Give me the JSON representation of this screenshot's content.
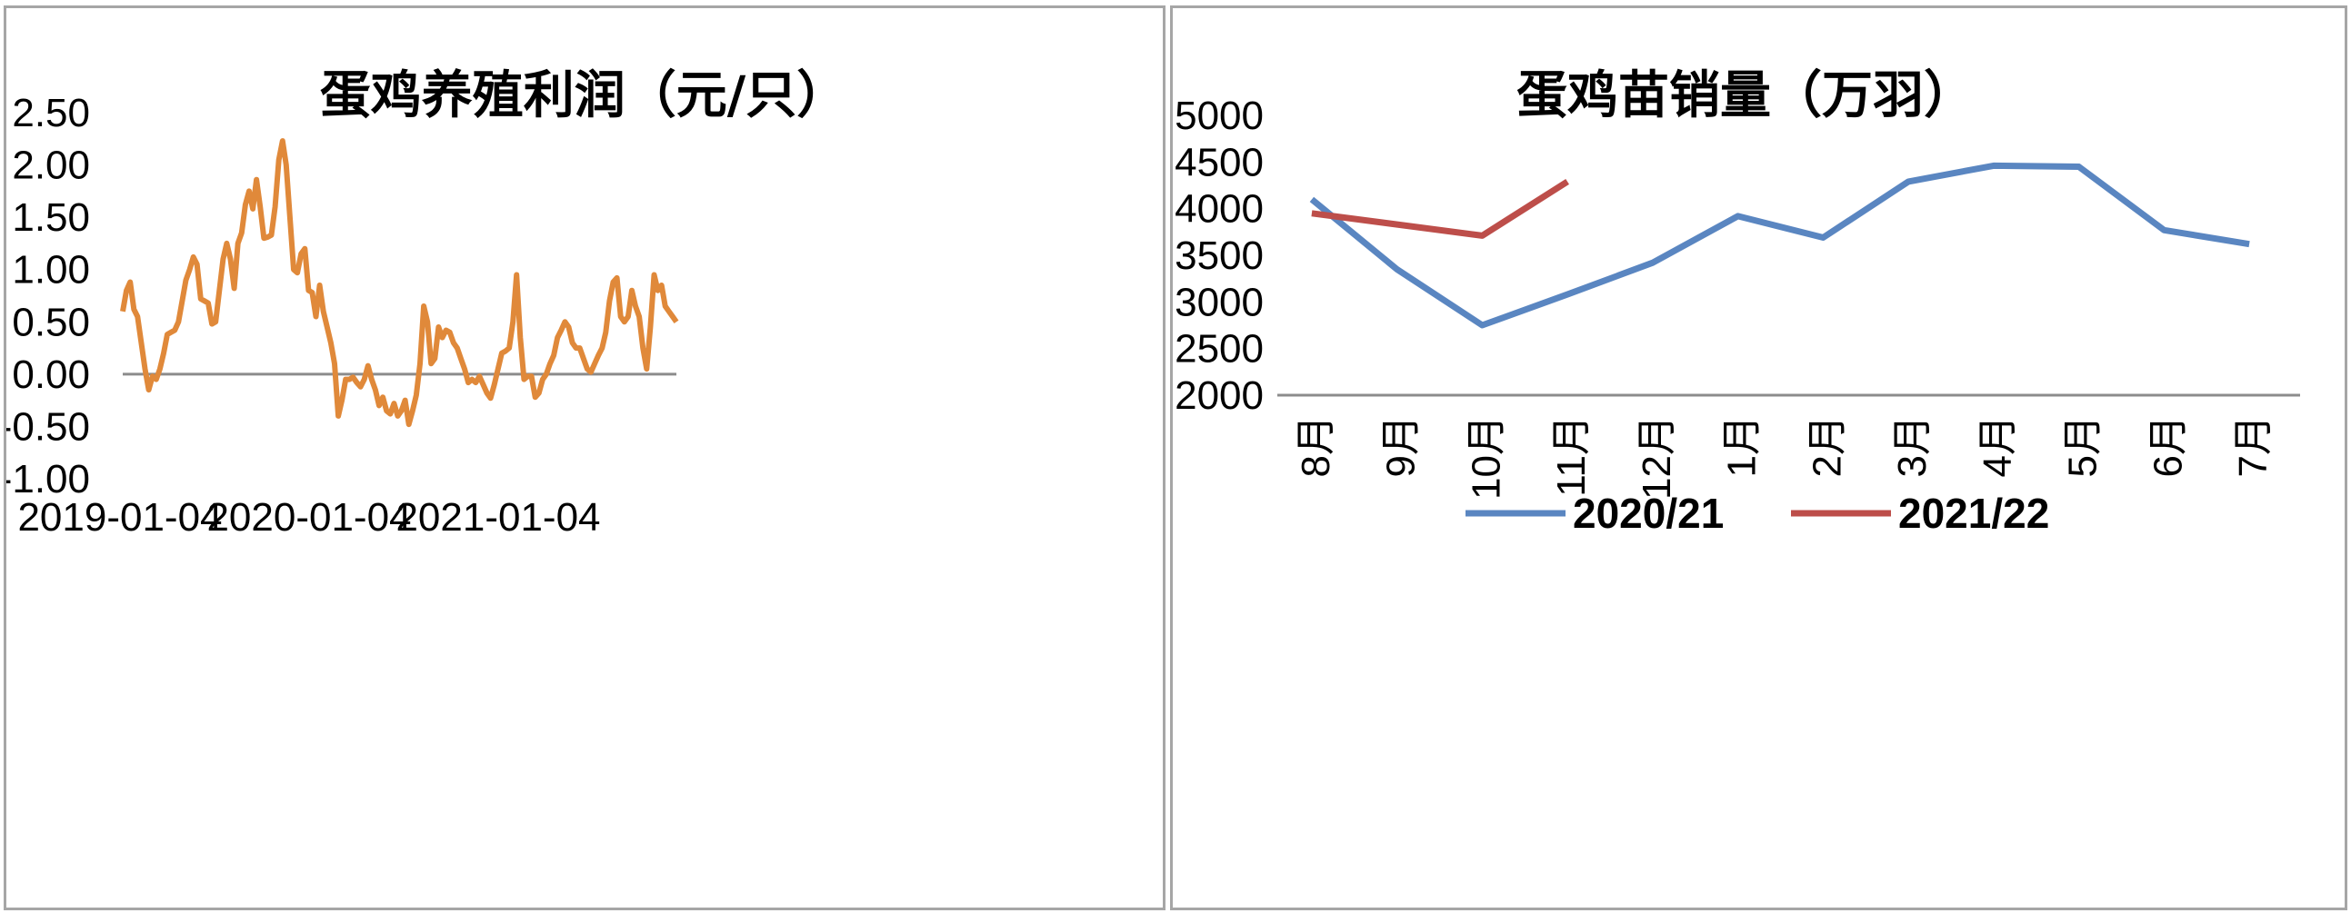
{
  "chart_data": [
    {
      "type": "line",
      "title": "蛋鸡养殖利润（元/只）",
      "xlabel": "",
      "ylabel": "",
      "ylim": [
        -1.0,
        2.5
      ],
      "yticks": [
        "2.50",
        "2.00",
        "1.50",
        "1.00",
        "0.50",
        "0.00",
        "-0.50",
        "-1.00"
      ],
      "xticks": [
        "2019-01-04",
        "2020-01-04",
        "2021-01-04"
      ],
      "grid": false,
      "color": "#E0893A",
      "series": [
        {
          "values": [
            0.6,
            0.8,
            0.88,
            0.62,
            0.55,
            0.3,
            0.05,
            -0.15,
            -0.02,
            -0.05,
            0.05,
            0.2,
            0.38,
            0.4,
            0.42,
            0.5,
            0.7,
            0.9,
            1.0,
            1.12,
            1.05,
            0.72,
            0.7,
            0.68,
            0.48,
            0.5,
            0.8,
            1.1,
            1.25,
            1.1,
            0.82,
            1.25,
            1.35,
            1.62,
            1.75,
            1.58,
            1.86,
            1.6,
            1.3,
            1.31,
            1.33,
            1.6,
            2.05,
            2.23,
            2.0,
            1.5,
            1.0,
            0.97,
            1.15,
            1.2,
            0.8,
            0.78,
            0.55,
            0.85,
            0.6,
            0.45,
            0.3,
            0.1,
            -0.4,
            -0.25,
            -0.05,
            -0.05,
            -0.03,
            -0.08,
            -0.12,
            -0.05,
            0.08,
            -0.05,
            -0.15,
            -0.3,
            -0.22,
            -0.35,
            -0.38,
            -0.28,
            -0.4,
            -0.35,
            -0.25,
            -0.48,
            -0.35,
            -0.2,
            0.1,
            0.65,
            0.5,
            0.1,
            0.15,
            0.45,
            0.35,
            0.42,
            0.4,
            0.3,
            0.25,
            0.15,
            0.05,
            -0.08,
            -0.05,
            -0.08,
            -0.02,
            -0.1,
            -0.18,
            -0.23,
            -0.1,
            0.05,
            0.2,
            0.22,
            0.25,
            0.5,
            0.95,
            0.35,
            -0.05,
            -0.02,
            -0.02,
            -0.22,
            -0.18,
            -0.05,
            0.0,
            0.1,
            0.18,
            0.35,
            0.42,
            0.5,
            0.45,
            0.3,
            0.25,
            0.25,
            0.15,
            0.05,
            0.02,
            0.1,
            0.18,
            0.25,
            0.4,
            0.7,
            0.88,
            0.92,
            0.55,
            0.5,
            0.55,
            0.8,
            0.65,
            0.55,
            0.25,
            0.05,
            0.45,
            0.95,
            0.8,
            0.85,
            0.65,
            0.6,
            0.55,
            0.5
          ]
        }
      ]
    },
    {
      "type": "line",
      "title": "蛋鸡苗销量（万羽）",
      "xlabel": "",
      "ylabel": "",
      "ylim": [
        2000,
        5000
      ],
      "yticks": [
        "5000",
        "4500",
        "4000",
        "3500",
        "3000",
        "2500",
        "2000"
      ],
      "categories": [
        "8月",
        "9月",
        "10月",
        "11月",
        "12月",
        "1月",
        "2月",
        "3月",
        "4月",
        "5月",
        "6月",
        "7月"
      ],
      "legend_position": "bottom",
      "series": [
        {
          "name": "2020/21",
          "color": "#5A86C1",
          "values": [
            4100,
            3350,
            2750,
            3080,
            3420,
            3920,
            3690,
            4290,
            4460,
            4450,
            3770,
            3620
          ]
        },
        {
          "name": "2021/22",
          "color": "#BD4E4A",
          "values": [
            3950,
            null,
            3710,
            4290,
            null,
            null,
            null,
            null,
            null,
            null,
            null,
            null
          ]
        }
      ]
    }
  ]
}
